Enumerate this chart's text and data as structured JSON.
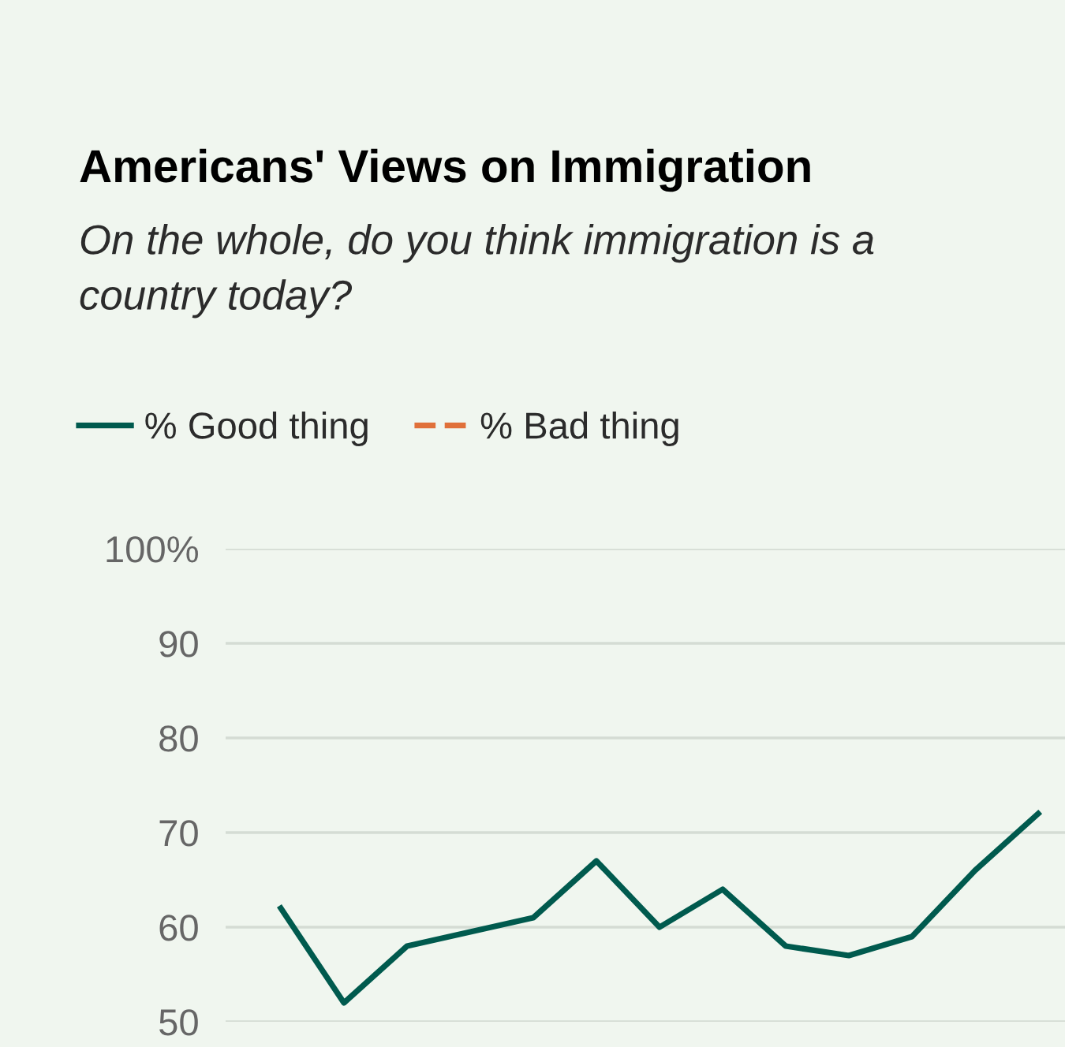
{
  "chart_data": {
    "type": "line",
    "title": "Americans' Views on Immigration",
    "subtitle": "On the whole, do you think immigration is a\ncountry today?",
    "categories": [
      null,
      null,
      null,
      null,
      null,
      null,
      null,
      null,
      null,
      null,
      null,
      null,
      null
    ],
    "series": [
      {
        "name": "% Good thing",
        "color": "#005a4e",
        "line_style": "solid",
        "values": [
          62,
          52,
          58,
          59.5,
          61,
          67,
          60,
          64,
          58,
          57,
          59,
          66,
          72
        ]
      },
      {
        "name": "% Bad thing",
        "color": "#e0703a",
        "line_style": "dashed",
        "values": [
          null,
          null,
          null,
          null,
          null,
          null,
          null,
          null,
          null,
          null,
          null,
          null,
          null
        ]
      }
    ],
    "ylim": [
      50,
      100
    ],
    "yticks": [
      {
        "value": 50,
        "label": "50"
      },
      {
        "value": 60,
        "label": "60"
      },
      {
        "value": 70,
        "label": "70"
      },
      {
        "value": 80,
        "label": "80"
      },
      {
        "value": 90,
        "label": "90"
      },
      {
        "value": 100,
        "label": "100%"
      }
    ],
    "grid": "y",
    "legend": "top left",
    "marker": "none"
  }
}
